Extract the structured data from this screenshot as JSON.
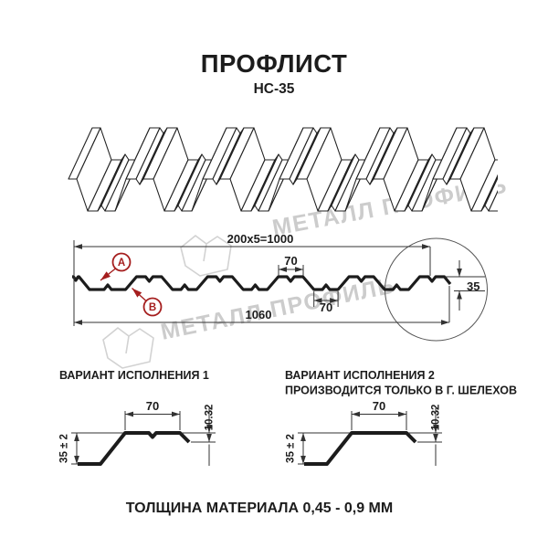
{
  "header": {
    "title": "ПРОФЛИСТ",
    "subtitle": "НС-35"
  },
  "watermark": {
    "text": "МЕТАЛЛ ПРОФИЛЬ",
    "color": "#cccccc"
  },
  "colors": {
    "line": "#1c1c1c",
    "dim": "#333333",
    "accent_red": "#a51e1e",
    "watermark": "#cccccc",
    "background": "#ffffff"
  },
  "cross_section": {
    "dim_module": "200x5=1000",
    "dim_rib_top": "70",
    "dim_rib_bottom": "70",
    "dim_overall": "1060",
    "dim_height": "35",
    "callout_a": "A",
    "callout_b": "B"
  },
  "variants": [
    {
      "title": "ВАРИАНТ ИСПОЛНЕНИЯ 1",
      "subtitle": "",
      "dim_rib": "70",
      "dim_edge": "10.32",
      "dim_height": "35 ± 2"
    },
    {
      "title": "ВАРИАНТ ИСПОЛНЕНИЯ 2",
      "subtitle": "ПРОИЗВОДИТСЯ ТОЛЬКО В Г. ШЕЛЕХОВ",
      "dim_rib": "70",
      "dim_edge": "10.32",
      "dim_height": "35 ± 2"
    }
  ],
  "footer": {
    "note": "ТОЛЩИНА МАТЕРИАЛА 0,45 - 0,9 ММ"
  }
}
